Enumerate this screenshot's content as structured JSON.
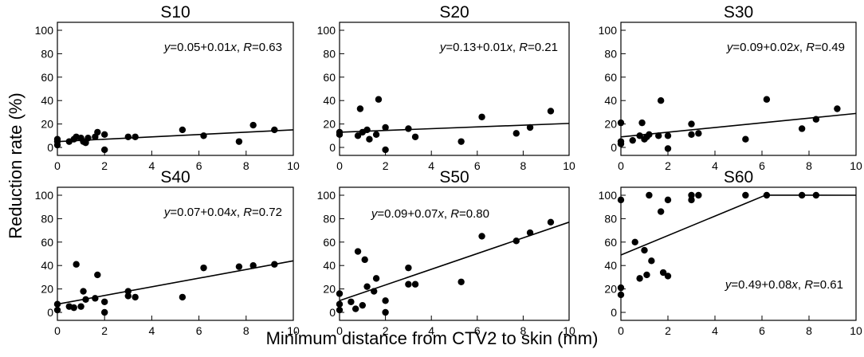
{
  "figure": {
    "ylabel": "Reduction rate (%)",
    "xlabel": "Minimum distance from CTV2 to skin (mm)"
  },
  "chart_data": [
    {
      "type": "scatter",
      "title": "S10",
      "xlim": [
        0,
        10
      ],
      "ylim": [
        0,
        100
      ],
      "xticks": [
        0,
        2,
        4,
        6,
        8,
        10
      ],
      "yticks": [
        0,
        20,
        40,
        60,
        80,
        100
      ],
      "equation": {
        "y": "y",
        "intercept": "=0.05+0.01",
        "x": "x",
        "sep": ", ",
        "r": "R",
        "r_value": "=0.63"
      },
      "equation_position": "top-right",
      "fit": {
        "intercept": 5,
        "slope": 1,
        "x_range": [
          0,
          10
        ]
      },
      "points": [
        [
          0,
          7
        ],
        [
          0,
          5
        ],
        [
          0,
          2
        ],
        [
          0.5,
          5
        ],
        [
          0.7,
          7
        ],
        [
          0.8,
          9
        ],
        [
          1,
          8
        ],
        [
          1.1,
          5
        ],
        [
          1.2,
          4
        ],
        [
          1.3,
          8
        ],
        [
          1.6,
          9
        ],
        [
          1.7,
          13
        ],
        [
          2,
          11
        ],
        [
          2,
          -2
        ],
        [
          3,
          9
        ],
        [
          3.3,
          9
        ],
        [
          5.3,
          15
        ],
        [
          6.2,
          10
        ],
        [
          7.7,
          5
        ],
        [
          8.3,
          19
        ],
        [
          9.2,
          15
        ]
      ]
    },
    {
      "type": "scatter",
      "title": "S20",
      "xlim": [
        0,
        10
      ],
      "ylim": [
        0,
        100
      ],
      "xticks": [
        0,
        2,
        4,
        6,
        8,
        10
      ],
      "yticks": [
        0,
        20,
        40,
        60,
        80,
        100
      ],
      "equation": {
        "y": "y",
        "intercept": "=0.13+0.01",
        "x": "x",
        "sep": ", ",
        "r": "R",
        "r_value": "=0.21"
      },
      "equation_position": "top-right",
      "fit": {
        "intercept": 13,
        "slope": 0.75,
        "x_range": [
          0,
          10
        ]
      },
      "points": [
        [
          0,
          13
        ],
        [
          0,
          11
        ],
        [
          0.8,
          10
        ],
        [
          0.9,
          33
        ],
        [
          1,
          13
        ],
        [
          1.2,
          15
        ],
        [
          1.3,
          7
        ],
        [
          1.6,
          11
        ],
        [
          1.7,
          41
        ],
        [
          2,
          17
        ],
        [
          2,
          -2
        ],
        [
          3,
          16
        ],
        [
          3.3,
          9
        ],
        [
          5.3,
          5
        ],
        [
          6.2,
          26
        ],
        [
          7.7,
          12
        ],
        [
          8.3,
          17
        ],
        [
          9.2,
          31
        ]
      ]
    },
    {
      "type": "scatter",
      "title": "S30",
      "xlim": [
        0,
        10
      ],
      "ylim": [
        0,
        100
      ],
      "xticks": [
        0,
        2,
        4,
        6,
        8,
        10
      ],
      "yticks": [
        0,
        20,
        40,
        60,
        80,
        100
      ],
      "equation": {
        "y": "y",
        "intercept": "=0.09+0.02",
        "x": "x",
        "sep": ", ",
        "r": "R",
        "r_value": "=0.49"
      },
      "equation_position": "top-right",
      "fit": {
        "intercept": 9,
        "slope": 2,
        "x_range": [
          0,
          10
        ]
      },
      "points": [
        [
          0,
          21
        ],
        [
          0,
          5
        ],
        [
          0,
          3
        ],
        [
          0.5,
          6
        ],
        [
          0.8,
          10
        ],
        [
          0.9,
          21
        ],
        [
          1,
          7
        ],
        [
          1.1,
          9
        ],
        [
          1.2,
          11
        ],
        [
          1.6,
          10
        ],
        [
          1.7,
          40
        ],
        [
          2,
          10
        ],
        [
          2,
          -1
        ],
        [
          3,
          20
        ],
        [
          3,
          11
        ],
        [
          3.3,
          12
        ],
        [
          5.3,
          7
        ],
        [
          6.2,
          41
        ],
        [
          7.7,
          16
        ],
        [
          8.3,
          24
        ],
        [
          9.2,
          33
        ]
      ]
    },
    {
      "type": "scatter",
      "title": "S40",
      "xlim": [
        0,
        10
      ],
      "ylim": [
        0,
        100
      ],
      "xticks": [
        0,
        2,
        4,
        6,
        8,
        10
      ],
      "yticks": [
        0,
        20,
        40,
        60,
        80,
        100
      ],
      "equation": {
        "y": "y",
        "intercept": "=0.07+0.04",
        "x": "x",
        "sep": ", ",
        "r": "R",
        "r_value": "=0.72"
      },
      "equation_position": "top-right",
      "fit": {
        "intercept": 7,
        "slope": 3.7,
        "x_range": [
          0,
          10
        ]
      },
      "points": [
        [
          0,
          7
        ],
        [
          0,
          2
        ],
        [
          0.5,
          5
        ],
        [
          0.7,
          4
        ],
        [
          0.8,
          41
        ],
        [
          1,
          5
        ],
        [
          1.1,
          18
        ],
        [
          1.2,
          11
        ],
        [
          1.6,
          12
        ],
        [
          1.7,
          32
        ],
        [
          2,
          9
        ],
        [
          2,
          0
        ],
        [
          3,
          18
        ],
        [
          3,
          14
        ],
        [
          3.3,
          13
        ],
        [
          5.3,
          13
        ],
        [
          6.2,
          38
        ],
        [
          7.7,
          39
        ],
        [
          8.3,
          40
        ],
        [
          9.2,
          41
        ]
      ]
    },
    {
      "type": "scatter",
      "title": "S50",
      "xlim": [
        0,
        10
      ],
      "ylim": [
        0,
        100
      ],
      "xticks": [
        0,
        2,
        4,
        6,
        8,
        10
      ],
      "yticks": [
        0,
        20,
        40,
        60,
        80,
        100
      ],
      "equation": {
        "y": "y",
        "intercept": "=0.09+0.07",
        "x": "x",
        "sep": ", ",
        "r": "R",
        "r_value": "=0.80"
      },
      "equation_position": "top-left",
      "fit": {
        "intercept": 10,
        "slope": 6.7,
        "x_range": [
          0,
          10
        ]
      },
      "points": [
        [
          0,
          16
        ],
        [
          0,
          7
        ],
        [
          0,
          2
        ],
        [
          0.5,
          9
        ],
        [
          0.7,
          3
        ],
        [
          0.8,
          52
        ],
        [
          1,
          6
        ],
        [
          1.1,
          45
        ],
        [
          1.2,
          22
        ],
        [
          1.5,
          18
        ],
        [
          1.6,
          29
        ],
        [
          2,
          10
        ],
        [
          2,
          0
        ],
        [
          3,
          38
        ],
        [
          3,
          24
        ],
        [
          3.3,
          24
        ],
        [
          5.3,
          26
        ],
        [
          6.2,
          65
        ],
        [
          7.7,
          61
        ],
        [
          8.3,
          68
        ],
        [
          9.2,
          77
        ]
      ]
    },
    {
      "type": "scatter",
      "title": "S60",
      "xlim": [
        0,
        10
      ],
      "ylim": [
        0,
        100
      ],
      "xticks": [
        0,
        2,
        4,
        6,
        8,
        10
      ],
      "yticks": [
        0,
        20,
        40,
        60,
        80,
        100
      ],
      "equation": {
        "y": "y",
        "intercept": "=0.49+0.08",
        "x": "x",
        "sep": ", ",
        "r": "R",
        "r_value": "=0.61"
      },
      "equation_position": "bottom-right",
      "fit": {
        "intercept": 49,
        "slope": 8.3,
        "x_range": [
          0,
          6.15
        ],
        "cap": 100,
        "cap_to": 10
      },
      "points": [
        [
          0,
          96
        ],
        [
          0,
          21
        ],
        [
          0,
          15
        ],
        [
          0.6,
          60
        ],
        [
          0.8,
          29
        ],
        [
          1,
          53
        ],
        [
          1.1,
          32
        ],
        [
          1.2,
          100
        ],
        [
          1.3,
          44
        ],
        [
          1.7,
          86
        ],
        [
          1.8,
          34
        ],
        [
          2,
          96
        ],
        [
          2,
          31
        ],
        [
          3,
          96
        ],
        [
          3,
          100
        ],
        [
          3.3,
          100
        ],
        [
          5.3,
          100
        ],
        [
          6.2,
          100
        ],
        [
          7.7,
          100
        ],
        [
          8.3,
          100
        ]
      ]
    }
  ]
}
